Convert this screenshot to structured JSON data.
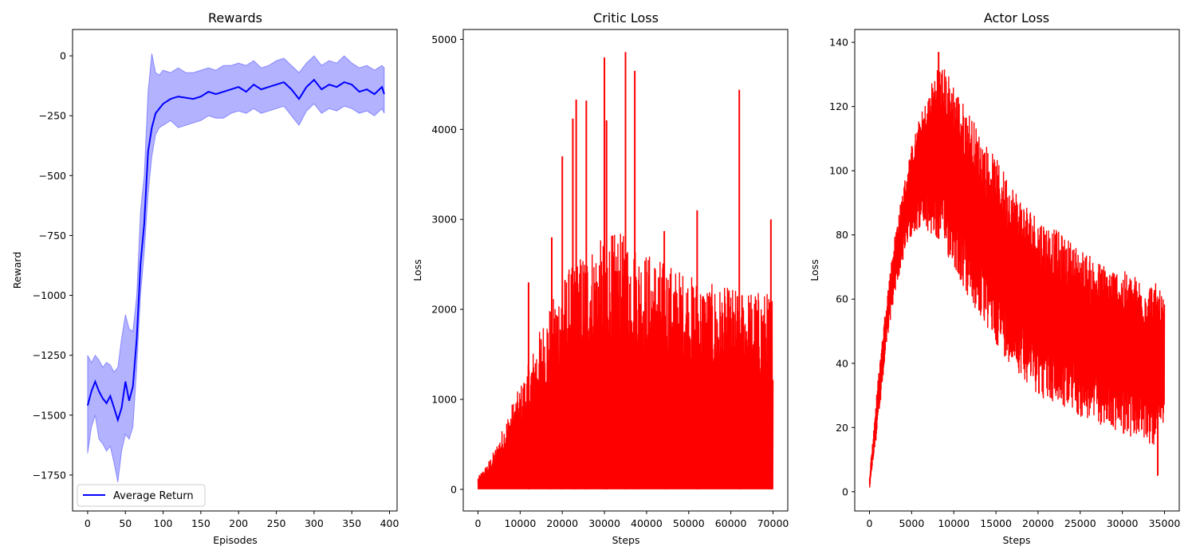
{
  "chart_data": [
    {
      "type": "line",
      "title": "Rewards",
      "xlabel": "Episodes",
      "ylabel": "Reward",
      "xlim": [
        -20,
        410
      ],
      "ylim": [
        -1900,
        110
      ],
      "xticks": [
        "0",
        "50",
        "100",
        "150",
        "200",
        "250",
        "300",
        "350",
        "400"
      ],
      "yticks": [
        "0",
        "−250",
        "−500",
        "−750",
        "−1000",
        "−1250",
        "−1500",
        "−1750"
      ],
      "legend": {
        "position": "lower-left",
        "entries": [
          "Average Return"
        ]
      },
      "colors": {
        "line": "#0000ff",
        "band": "#0000ff"
      },
      "series": [
        {
          "name": "Average Return",
          "x": [
            0,
            5,
            10,
            15,
            20,
            25,
            30,
            35,
            40,
            45,
            50,
            55,
            60,
            65,
            70,
            75,
            80,
            85,
            90,
            95,
            100,
            110,
            120,
            130,
            140,
            150,
            160,
            170,
            180,
            190,
            200,
            210,
            220,
            230,
            240,
            250,
            260,
            270,
            280,
            290,
            300,
            310,
            320,
            330,
            340,
            350,
            360,
            370,
            380,
            390,
            393
          ],
          "mean": [
            -1460,
            -1400,
            -1360,
            -1400,
            -1430,
            -1450,
            -1420,
            -1470,
            -1520,
            -1470,
            -1360,
            -1440,
            -1380,
            -1180,
            -870,
            -700,
            -400,
            -300,
            -240,
            -220,
            -200,
            -180,
            -170,
            -175,
            -180,
            -170,
            -150,
            -160,
            -150,
            -140,
            -130,
            -150,
            -120,
            -140,
            -130,
            -120,
            -110,
            -140,
            -180,
            -130,
            -100,
            -140,
            -120,
            -130,
            -110,
            -120,
            -150,
            -140,
            -160,
            -130,
            -160
          ],
          "lower": [
            -1660,
            -1550,
            -1500,
            -1600,
            -1620,
            -1650,
            -1630,
            -1700,
            -1780,
            -1650,
            -1580,
            -1600,
            -1550,
            -1300,
            -1000,
            -820,
            -580,
            -420,
            -330,
            -300,
            -290,
            -270,
            -300,
            -290,
            -280,
            -270,
            -250,
            -260,
            -260,
            -240,
            -230,
            -240,
            -220,
            -240,
            -230,
            -220,
            -210,
            -250,
            -290,
            -230,
            -200,
            -240,
            -220,
            -230,
            -210,
            -220,
            -240,
            -230,
            -250,
            -220,
            -240
          ],
          "upper": [
            -1250,
            -1280,
            -1250,
            -1270,
            -1300,
            -1280,
            -1290,
            -1320,
            -1300,
            -1180,
            -1080,
            -1140,
            -1150,
            -1000,
            -650,
            -500,
            -150,
            10,
            -70,
            -80,
            -60,
            -70,
            -50,
            -70,
            -70,
            -60,
            -50,
            -60,
            -40,
            -40,
            -30,
            -40,
            -20,
            -50,
            -40,
            -20,
            -10,
            -40,
            -70,
            -30,
            0,
            -40,
            -20,
            -30,
            0,
            -30,
            -50,
            -40,
            -60,
            -40,
            -50
          ]
        }
      ]
    },
    {
      "type": "line",
      "title": "Critic Loss",
      "xlabel": "Steps",
      "ylabel": "Loss",
      "xlim": [
        -3500,
        73500
      ],
      "ylim": [
        -240,
        5110
      ],
      "xticks": [
        "0",
        "10000",
        "20000",
        "30000",
        "40000",
        "50000",
        "60000",
        "70000"
      ],
      "yticks": [
        "0",
        "1000",
        "2000",
        "3000",
        "4000",
        "5000"
      ],
      "colors": {
        "line": "#ff0000"
      },
      "series": [
        {
          "x": [
            0,
            2000,
            4000,
            6000,
            8000,
            10000,
            12000,
            14000,
            16000,
            18000,
            20000,
            22000,
            24000,
            26000,
            28000,
            30000,
            32000,
            34000,
            36000,
            38000,
            40000,
            42000,
            44000,
            46000,
            48000,
            50000,
            52000,
            54000,
            56000,
            58000,
            60000,
            62000,
            64000,
            66000,
            68000,
            70000
          ],
          "envelope": [
            140,
            270,
            450,
            700,
            950,
            1150,
            1400,
            1700,
            1950,
            2150,
            2350,
            2500,
            2600,
            2700,
            2750,
            2800,
            2850,
            2850,
            2800,
            2700,
            2650,
            2600,
            2550,
            2500,
            2450,
            2400,
            2350,
            2300,
            2280,
            2250,
            2250,
            2250,
            2230,
            2220,
            2200,
            2200
          ],
          "spikes": [
            {
              "x": 12000,
              "y": 2300
            },
            {
              "x": 17500,
              "y": 2800
            },
            {
              "x": 20000,
              "y": 3700
            },
            {
              "x": 22500,
              "y": 4120
            },
            {
              "x": 23300,
              "y": 4330
            },
            {
              "x": 25700,
              "y": 4320
            },
            {
              "x": 30000,
              "y": 4800
            },
            {
              "x": 30500,
              "y": 4100
            },
            {
              "x": 35000,
              "y": 4860
            },
            {
              "x": 37200,
              "y": 4650
            },
            {
              "x": 44200,
              "y": 2870
            },
            {
              "x": 52000,
              "y": 3100
            },
            {
              "x": 62000,
              "y": 4440
            },
            {
              "x": 69500,
              "y": 3000
            }
          ]
        }
      ]
    },
    {
      "type": "line",
      "title": "Actor Loss",
      "xlabel": "Steps",
      "ylabel": "Loss",
      "xlim": [
        -1750,
        36750
      ],
      "ylim": [
        -6,
        144
      ],
      "xticks": [
        "0",
        "5000",
        "10000",
        "15000",
        "20000",
        "25000",
        "30000",
        "35000"
      ],
      "yticks": [
        "0",
        "20",
        "40",
        "60",
        "80",
        "100",
        "120",
        "140"
      ],
      "colors": {
        "line": "#ff0000"
      },
      "series": [
        {
          "x": [
            0,
            1000,
            2000,
            3000,
            4000,
            5000,
            6000,
            7000,
            8000,
            9000,
            10000,
            11000,
            12000,
            13000,
            14000,
            15000,
            16000,
            17000,
            18000,
            19000,
            20000,
            21000,
            22000,
            23000,
            24000,
            25000,
            26000,
            27000,
            28000,
            29000,
            30000,
            31000,
            32000,
            33000,
            34000,
            35000
          ],
          "upper": [
            5,
            35,
            60,
            80,
            95,
            108,
            117,
            124,
            134,
            132,
            128,
            122,
            118,
            112,
            108,
            104,
            100,
            96,
            92,
            89,
            86,
            84,
            82,
            80,
            78,
            76,
            74,
            72,
            71,
            70,
            69,
            68,
            67,
            66,
            65,
            60
          ],
          "lower": [
            0,
            20,
            45,
            62,
            72,
            80,
            82,
            80,
            78,
            74,
            70,
            64,
            58,
            54,
            50,
            46,
            42,
            39,
            36,
            33,
            30,
            28,
            27,
            26,
            25,
            23,
            22,
            21,
            20,
            19,
            18,
            17,
            16,
            15,
            14,
            20
          ],
          "peak": {
            "x": 8200,
            "y": 137
          },
          "min": {
            "x": 34200,
            "y": 5
          }
        }
      ]
    }
  ]
}
